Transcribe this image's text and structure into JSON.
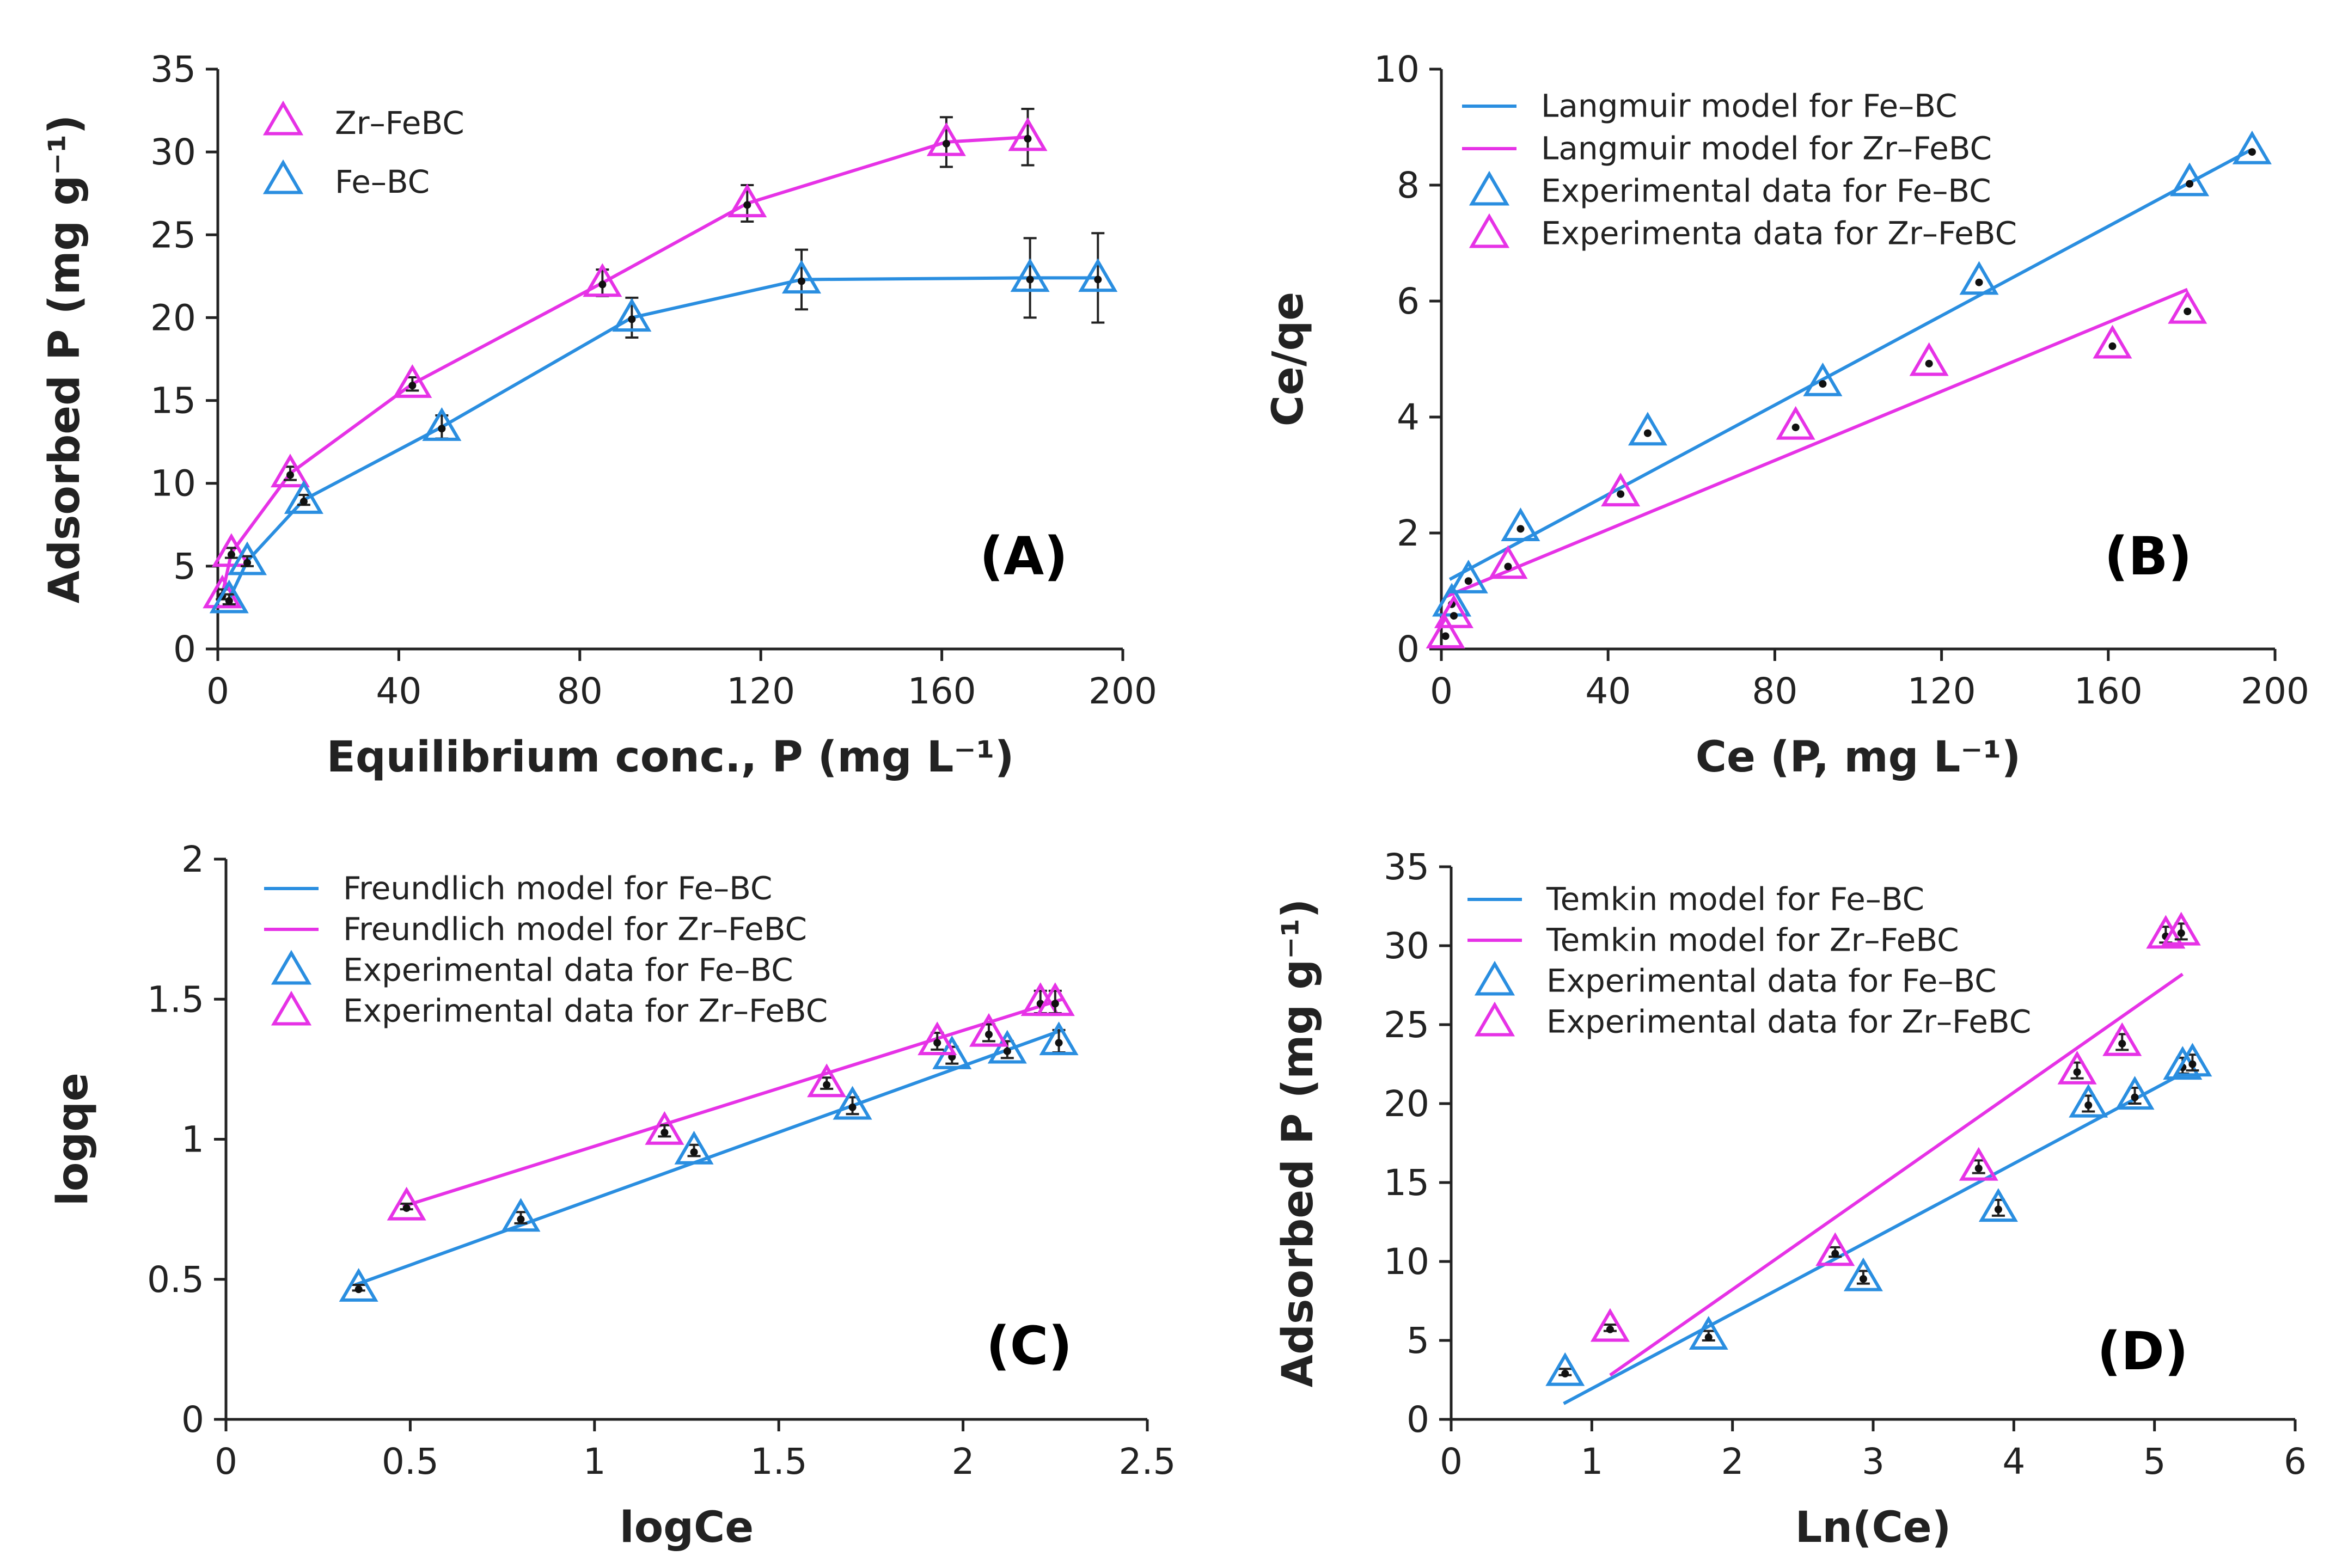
{
  "colors": {
    "fe": "#2a8ee0",
    "zr": "#e632e6",
    "axis": "#222222",
    "errbar": "#222222"
  },
  "chart_data": [
    {
      "panel": "(A)",
      "type": "line",
      "xlabel": "Equilibrium conc., P (mg L⁻¹)",
      "ylabel": "Adsorbed P (mg g⁻¹)",
      "xlim": [
        0,
        200
      ],
      "ylim": [
        0,
        35
      ],
      "xticks": [
        0,
        40,
        80,
        120,
        160,
        200
      ],
      "yticks": [
        0,
        5,
        10,
        15,
        20,
        25,
        30,
        35
      ],
      "legend_position": "top-left",
      "series": [
        {
          "name": "Zr–FeBC",
          "color_key": "zr",
          "marker": "triangle",
          "connect": true,
          "x": [
            1,
            3,
            16,
            43,
            85,
            117,
            161,
            179
          ],
          "y": [
            3.3,
            5.8,
            10.6,
            16,
            22.1,
            26.9,
            30.6,
            30.9
          ],
          "err": [
            0.3,
            0.3,
            0.4,
            0.4,
            0.8,
            1.1,
            1.5,
            1.7
          ]
        },
        {
          "name": "Fe–BC",
          "color_key": "fe",
          "marker": "triangle",
          "connect": true,
          "x": [
            2.5,
            6.5,
            19,
            49.5,
            91.5,
            129,
            179.5,
            194.5
          ],
          "y": [
            3,
            5.3,
            9,
            13.4,
            20,
            22.3,
            22.4,
            22.4
          ],
          "err": [
            0.3,
            0.3,
            0.3,
            0.7,
            1.2,
            1.8,
            2.4,
            2.7
          ]
        }
      ]
    },
    {
      "panel": "(B)",
      "type": "scatter",
      "xlabel": "Ce (P, mg L⁻¹)",
      "ylabel": "Ce/qe",
      "xlim": [
        0,
        200
      ],
      "ylim": [
        0,
        10
      ],
      "xticks": [
        0,
        40,
        80,
        120,
        160,
        200
      ],
      "yticks": [
        0,
        2,
        4,
        6,
        8,
        10
      ],
      "legend_position": "top-left",
      "fits": [
        {
          "name": "Langmuir model for Fe–BC",
          "color_key": "fe",
          "x": [
            2,
            194
          ],
          "y": [
            1.2,
            8.6
          ]
        },
        {
          "name": "Langmuir model for Zr–FeBC",
          "color_key": "zr",
          "x": [
            1,
            179
          ],
          "y": [
            0.9,
            6.2
          ]
        }
      ],
      "series": [
        {
          "name": "Experimental data for Fe–BC",
          "color_key": "fe",
          "marker": "triangle",
          "x": [
            2.5,
            6.5,
            19,
            49.5,
            91.5,
            129,
            179.5,
            194.5
          ],
          "y": [
            0.8,
            1.2,
            2.1,
            3.75,
            4.6,
            6.35,
            8.05,
            8.6
          ]
        },
        {
          "name": "Experimenta data for Zr–FeBC",
          "color_key": "zr",
          "marker": "triangle",
          "x": [
            1,
            3,
            16,
            43,
            85,
            117,
            161,
            179
          ],
          "y": [
            0.25,
            0.6,
            1.45,
            2.7,
            3.85,
            4.95,
            5.25,
            5.85
          ]
        }
      ]
    },
    {
      "panel": "(C)",
      "type": "scatter",
      "xlabel": "logCe",
      "ylabel": "logqe",
      "xlim": [
        0,
        2.5
      ],
      "ylim": [
        0,
        2
      ],
      "xticks": [
        0,
        0.5,
        1,
        1.5,
        2,
        2.5
      ],
      "yticks": [
        0,
        0.5,
        1,
        1.5,
        2
      ],
      "legend_position": "top-left",
      "fits": [
        {
          "name": "Freundlich model for Fe–BC",
          "color_key": "fe",
          "x": [
            0.35,
            2.27
          ],
          "y": [
            0.48,
            1.39
          ]
        },
        {
          "name": "Freundlich model for Zr–FeBC",
          "color_key": "zr",
          "x": [
            0.48,
            2.27
          ],
          "y": [
            0.76,
            1.5
          ]
        }
      ],
      "series": [
        {
          "name": "Experimental data for Fe–BC",
          "color_key": "fe",
          "marker": "triangle",
          "x": [
            0.36,
            0.8,
            1.27,
            1.7,
            1.97,
            2.12,
            2.26
          ],
          "y": [
            0.47,
            0.72,
            0.96,
            1.12,
            1.3,
            1.32,
            1.35
          ],
          "err": [
            0.01,
            0.02,
            0.02,
            0.03,
            0.03,
            0.03,
            0.04
          ]
        },
        {
          "name": "Experimental data for Zr–FeBC",
          "color_key": "zr",
          "marker": "triangle",
          "x": [
            0.49,
            1.19,
            1.63,
            1.93,
            2.07,
            2.21,
            2.25
          ],
          "y": [
            0.76,
            1.03,
            1.2,
            1.35,
            1.38,
            1.49,
            1.49
          ],
          "err": [
            0.01,
            0.02,
            0.02,
            0.03,
            0.03,
            0.04,
            0.04
          ]
        }
      ]
    },
    {
      "panel": "(D)",
      "type": "scatter",
      "xlabel": "Ln(Ce)",
      "ylabel": "Adsorbed P (mg g⁻¹)",
      "xlim": [
        0,
        6
      ],
      "ylim": [
        0,
        35
      ],
      "xticks": [
        0,
        1,
        2,
        3,
        4,
        5,
        6
      ],
      "yticks": [
        0,
        5,
        10,
        15,
        20,
        25,
        30,
        35
      ],
      "legend_position": "top-left",
      "fits": [
        {
          "name": "Temkin model for Fe–BC",
          "color_key": "fe",
          "x": [
            0.8,
            5.2
          ],
          "y": [
            1,
            21.9
          ]
        },
        {
          "name": "Temkin model for Zr–FeBC",
          "color_key": "zr",
          "x": [
            1.13,
            5.2
          ],
          "y": [
            2.8,
            28.2
          ]
        }
      ],
      "series": [
        {
          "name": "Experimental data for Fe–BC",
          "color_key": "fe",
          "marker": "triangle",
          "x": [
            0.81,
            1.83,
            2.93,
            3.89,
            4.53,
            4.86,
            5.2,
            5.27
          ],
          "y": [
            3,
            5.3,
            9,
            13.4,
            20,
            20.5,
            22.4,
            22.6
          ],
          "err": [
            0.2,
            0.3,
            0.4,
            0.5,
            0.5,
            0.5,
            0.5,
            0.5
          ]
        },
        {
          "name": "Experimental data for Zr–FeBC",
          "color_key": "zr",
          "marker": "triangle",
          "x": [
            1.13,
            2.73,
            3.75,
            4.45,
            4.77,
            5.08,
            5.19
          ],
          "y": [
            5.8,
            10.6,
            16,
            22.1,
            23.9,
            30.7,
            30.9
          ],
          "err": [
            0.2,
            0.3,
            0.4,
            0.5,
            0.5,
            0.5,
            0.5
          ]
        }
      ]
    }
  ]
}
